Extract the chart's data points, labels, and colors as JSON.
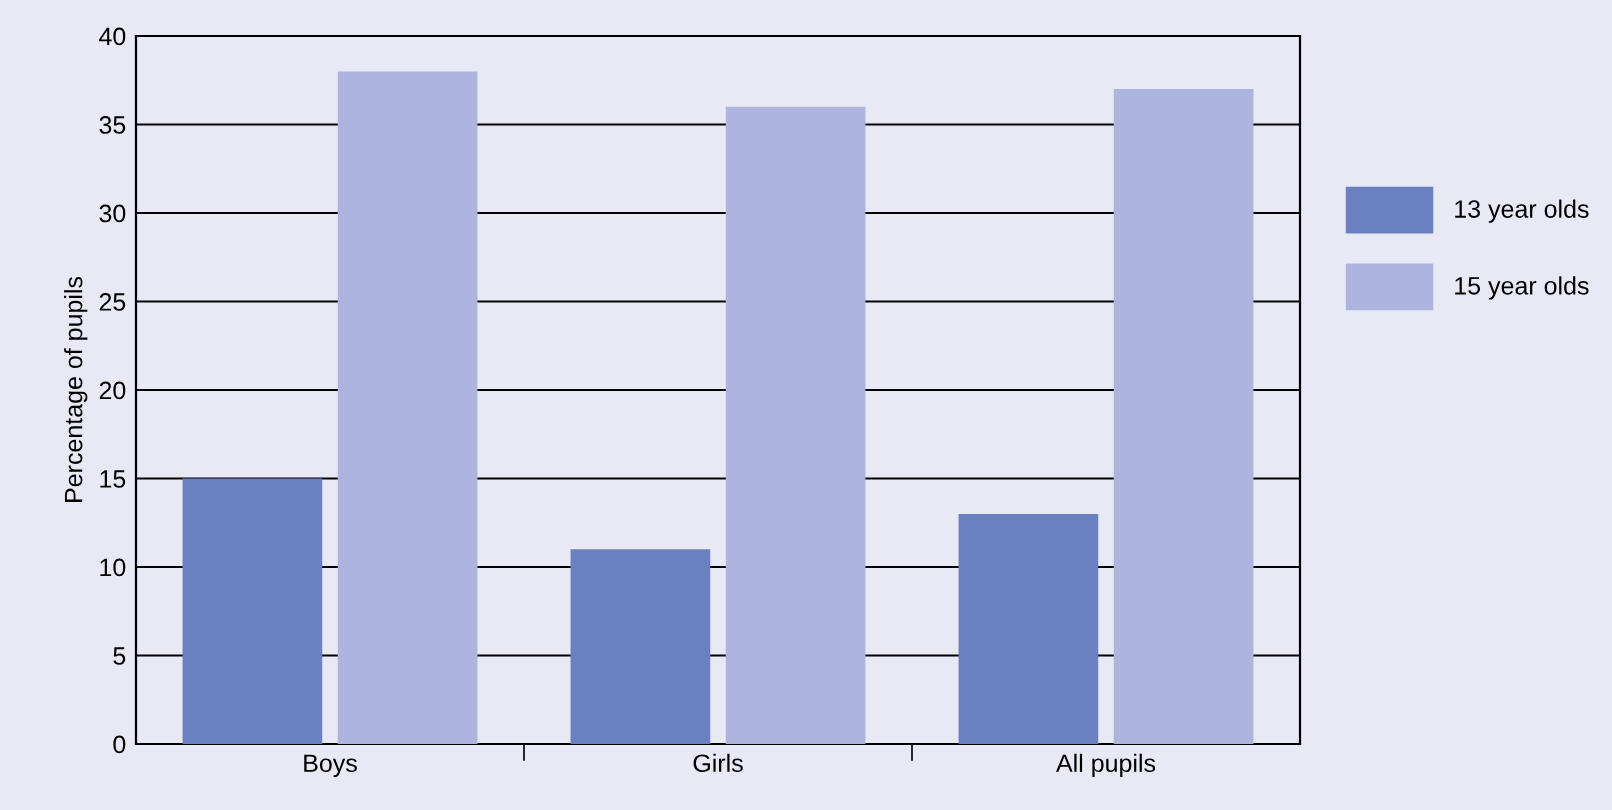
{
  "chart_data": {
    "type": "bar",
    "ylabel": "Percentage of pupils",
    "categories": [
      "Boys",
      "Girls",
      "All pupils"
    ],
    "series": [
      {
        "name": "13 year olds",
        "color": "#6b80c0",
        "values": [
          15,
          11,
          13
        ]
      },
      {
        "name": "15 year olds",
        "color": "#adb5df",
        "values": [
          38,
          36,
          37
        ]
      }
    ],
    "ylim": [
      0,
      40
    ],
    "yticks": [
      0,
      5,
      10,
      15,
      20,
      25,
      30,
      35,
      40
    ],
    "grid": "y",
    "legend": "right"
  }
}
